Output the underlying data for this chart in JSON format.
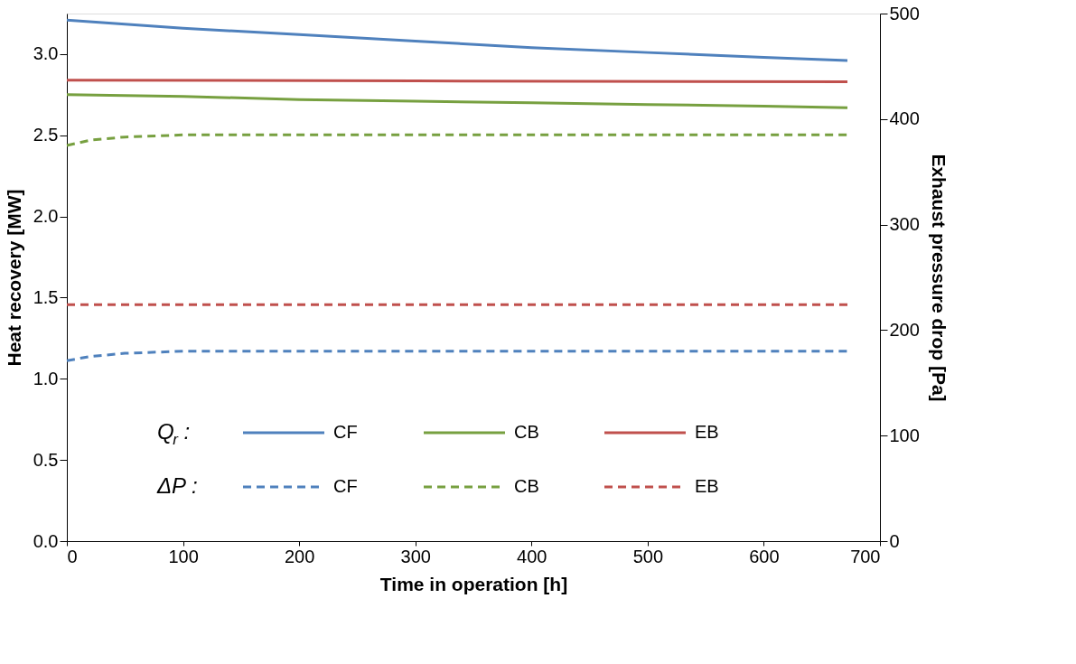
{
  "chart_data": {
    "type": "line",
    "xlabel": "Time in operation [h]",
    "ylabel": "Heat recovery [MW]",
    "y2label": "Exhaust pressure drop [Pa]",
    "xlim": [
      0,
      700
    ],
    "xticks": [
      0,
      100,
      200,
      300,
      400,
      500,
      600,
      700
    ],
    "ylim": [
      0,
      3.25
    ],
    "yticks": [
      {
        "value": 0,
        "label": "0.0"
      },
      {
        "value": 0.5,
        "label": "0.5"
      },
      {
        "value": 1,
        "label": "1.0"
      },
      {
        "value": 1.5,
        "label": "1.5"
      },
      {
        "value": 2,
        "label": "2.0"
      },
      {
        "value": 2.5,
        "label": "2.5"
      },
      {
        "value": 3,
        "label": "3.0"
      }
    ],
    "y2lim": [
      0,
      500
    ],
    "y2ticks": [
      0,
      100,
      200,
      300,
      400,
      500
    ],
    "grid": false,
    "legend": "bottom left",
    "annotations": [
      "Q$_{r}$ :",
      "ΔP :"
    ],
    "series": [
      {
        "name": "CF",
        "color": "#4f81bd",
        "line_style": "solid",
        "x": [
          0,
          100,
          200,
          300,
          400,
          500,
          600,
          672
        ],
        "values": [
          3.21,
          3.16,
          3.12,
          3.08,
          3.04,
          3.01,
          2.98,
          2.96
        ]
      },
      {
        "name": "CB",
        "color": "#77a040",
        "line_style": "solid",
        "x": [
          0,
          100,
          200,
          300,
          400,
          500,
          600,
          672
        ],
        "values": [
          2.75,
          2.74,
          2.72,
          2.71,
          2.7,
          2.69,
          2.68,
          2.67
        ]
      },
      {
        "name": "EB",
        "color": "#c0504d",
        "line_style": "solid",
        "x": [
          0,
          300,
          672
        ],
        "values": [
          2.84,
          2.835,
          2.83
        ]
      },
      {
        "name": "CF",
        "color": "#4f81bd",
        "line_style": "dashed",
        "axis": "y2",
        "x": [
          0,
          20,
          50,
          100,
          150,
          200,
          672
        ],
        "values": [
          171,
          175,
          178,
          180,
          180,
          180,
          180
        ]
      },
      {
        "name": "CB",
        "color": "#77a040",
        "line_style": "dashed",
        "axis": "y2",
        "x": [
          0,
          20,
          50,
          100,
          150,
          200,
          672
        ],
        "values": [
          375,
          380,
          383,
          385,
          385,
          385,
          385
        ]
      },
      {
        "name": "EB",
        "color": "#c0504d",
        "line_style": "dashed",
        "axis": "y2",
        "x": [
          0,
          672
        ],
        "values": [
          224,
          224
        ]
      }
    ]
  }
}
